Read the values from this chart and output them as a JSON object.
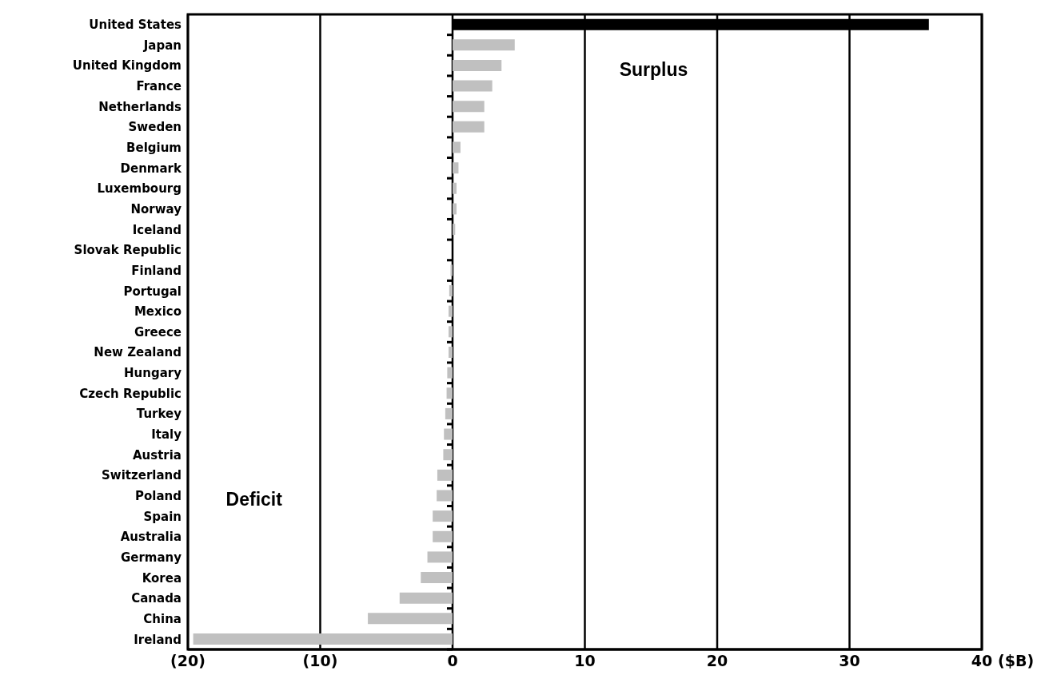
{
  "chart_data": {
    "type": "bar",
    "orientation": "horizontal",
    "categories": [
      "United States",
      "Japan",
      "United Kingdom",
      "France",
      "Netherlands",
      "Sweden",
      "Belgium",
      "Denmark",
      "Luxembourg",
      "Norway",
      "Iceland",
      "Slovak Republic",
      "Finland",
      "Portugal",
      "Mexico",
      "Greece",
      "New Zealand",
      "Hungary",
      "Czech Republic",
      "Turkey",
      "Italy",
      "Austria",
      "Switzerland",
      "Poland",
      "Spain",
      "Australia",
      "Germany",
      "Korea",
      "Canada",
      "China",
      "Ireland"
    ],
    "values": [
      36,
      4.7,
      3.7,
      3,
      2.4,
      2.4,
      0.6,
      0.45,
      0.3,
      0.3,
      0.2,
      0,
      -0.15,
      -0.25,
      -0.3,
      -0.3,
      -0.3,
      -0.4,
      -0.45,
      -0.55,
      -0.65,
      -0.7,
      -1.15,
      -1.2,
      -1.5,
      -1.5,
      -1.9,
      -2.4,
      -4,
      -6.4,
      -19.6
    ],
    "colors": [
      "#000000",
      "#c0c0c0",
      "#c0c0c0",
      "#c0c0c0",
      "#c0c0c0",
      "#c0c0c0",
      "#c0c0c0",
      "#c0c0c0",
      "#c0c0c0",
      "#c0c0c0",
      "#c0c0c0",
      "#c0c0c0",
      "#c0c0c0",
      "#c0c0c0",
      "#c0c0c0",
      "#c0c0c0",
      "#c0c0c0",
      "#c0c0c0",
      "#c0c0c0",
      "#c0c0c0",
      "#c0c0c0",
      "#c0c0c0",
      "#c0c0c0",
      "#c0c0c0",
      "#c0c0c0",
      "#c0c0c0",
      "#c0c0c0",
      "#c0c0c0",
      "#c0c0c0",
      "#c0c0c0",
      "#c0c0c0"
    ],
    "xlim": [
      -20,
      40
    ],
    "xticks": [
      {
        "value": -20,
        "label": "(20)"
      },
      {
        "value": -10,
        "label": "(10)"
      },
      0,
      10,
      20,
      30,
      40
    ],
    "xlabel": "($B)",
    "grid": "x",
    "annotations": [
      "Surplus",
      "Deficit"
    ]
  }
}
